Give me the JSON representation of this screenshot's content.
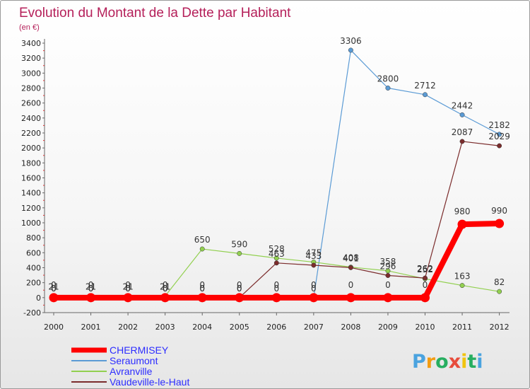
{
  "colors": {
    "title": "#b5205a",
    "chermisey": "#ff0000",
    "seraumont": "#5b9bd5",
    "avranville": "#92d050",
    "vaudeville": "#7b2c2c"
  },
  "brand": {
    "letters": [
      "P",
      "r",
      "o",
      "x",
      "i",
      "t",
      "i"
    ],
    "colors": [
      "#4aa3df",
      "#f39c12",
      "#27ae60",
      "#e74c3c",
      "#f1c40f",
      "#27ae60",
      "#4aa3df"
    ]
  },
  "chart_data": {
    "type": "line",
    "title": "Evolution du Montant de la Dette par Habitant",
    "subtitle": "(en €)",
    "x": [
      "2000",
      "2001",
      "2002",
      "2003",
      "2004",
      "2005",
      "2006",
      "2007",
      "2008",
      "2009",
      "2010",
      "2011",
      "2012"
    ],
    "ylim": [
      -200,
      3400
    ],
    "yticks": [
      -200,
      0,
      200,
      400,
      600,
      800,
      1000,
      1200,
      1400,
      1600,
      1800,
      2000,
      2200,
      2400,
      2600,
      2800,
      3000,
      3200,
      3400
    ],
    "grid": false,
    "legend_position": "bottom-left",
    "series": [
      {
        "name": "CHERMISEY",
        "color": "#ff0000",
        "values": [
          0,
          0,
          0,
          0,
          0,
          0,
          0,
          0,
          0,
          0,
          0,
          980,
          990
        ],
        "labels": [
          "0",
          "0",
          "0",
          "0",
          "0",
          "0",
          "0",
          "0",
          "0",
          "0",
          "0",
          "980",
          "990"
        ]
      },
      {
        "name": "Seraumont",
        "color": "#5b9bd5",
        "values": [
          0,
          0,
          0,
          0,
          0,
          0,
          0,
          0,
          3306,
          2800,
          2712,
          2442,
          2182
        ],
        "labels": [
          "0",
          "0",
          "0",
          "0",
          "0",
          "0",
          "0",
          "0",
          "3306",
          "2800",
          "2712",
          "2442",
          "2182"
        ]
      },
      {
        "name": "Avranville",
        "color": "#92d050",
        "values": [
          21,
          21,
          21,
          21,
          650,
          590,
          528,
          475,
          408,
          358,
          252,
          163,
          82
        ],
        "labels": [
          "21",
          "21",
          "21",
          "21",
          "650",
          "590",
          "528",
          "475",
          "408",
          "358",
          "252",
          "163",
          "82"
        ]
      },
      {
        "name": "Vaudeville-le-Haut",
        "color": "#7b2c2c",
        "values": [
          0,
          0,
          0,
          0,
          0,
          0,
          463,
          433,
          401,
          296,
          262,
          2087,
          2029
        ],
        "labels": [
          "0",
          "0",
          "0",
          "0",
          "0",
          "0",
          "463",
          "433",
          "401",
          "296",
          "262",
          "2087",
          "2029"
        ]
      }
    ]
  }
}
